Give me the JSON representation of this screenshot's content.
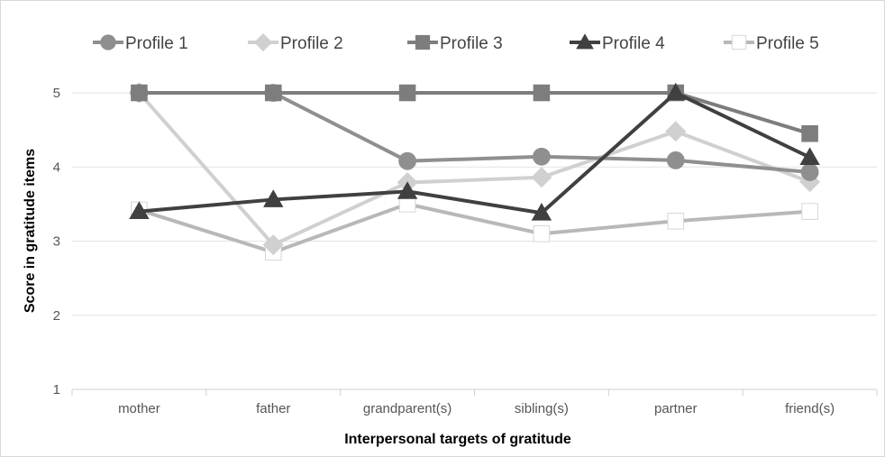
{
  "chart_data": {
    "type": "line",
    "title": "",
    "xlabel": "Interpersonal targets of gratitude",
    "ylabel": "Score in gratitude items",
    "categories": [
      "mother",
      "father",
      "grandparent(s)",
      "sibling(s)",
      "partner",
      "friend(s)"
    ],
    "ylim": [
      1,
      5.5
    ],
    "yticks": [
      "1",
      "2",
      "3",
      "4",
      "5"
    ],
    "grid": true,
    "legend_position": "top",
    "series": [
      {
        "name": "Profile 1",
        "values": [
          5.0,
          5.0,
          4.08,
          4.14,
          4.09,
          3.93
        ],
        "color": "#8f8f8f",
        "marker": "circle"
      },
      {
        "name": "Profile 2",
        "values": [
          5.0,
          2.95,
          3.79,
          3.86,
          4.48,
          3.8
        ],
        "color": "#d0d0d0",
        "marker": "diamond"
      },
      {
        "name": "Profile 3",
        "values": [
          5.0,
          5.0,
          5.0,
          5.0,
          5.0,
          4.45
        ],
        "color": "#7d7d7d",
        "marker": "square"
      },
      {
        "name": "Profile 4",
        "values": [
          3.4,
          3.56,
          3.67,
          3.38,
          5.0,
          4.13
        ],
        "color": "#404040",
        "marker": "triangle"
      },
      {
        "name": "Profile 5",
        "values": [
          3.42,
          2.85,
          3.5,
          3.1,
          3.27,
          3.4
        ],
        "color": "#b8b8b8",
        "marker": "open-square"
      }
    ]
  }
}
